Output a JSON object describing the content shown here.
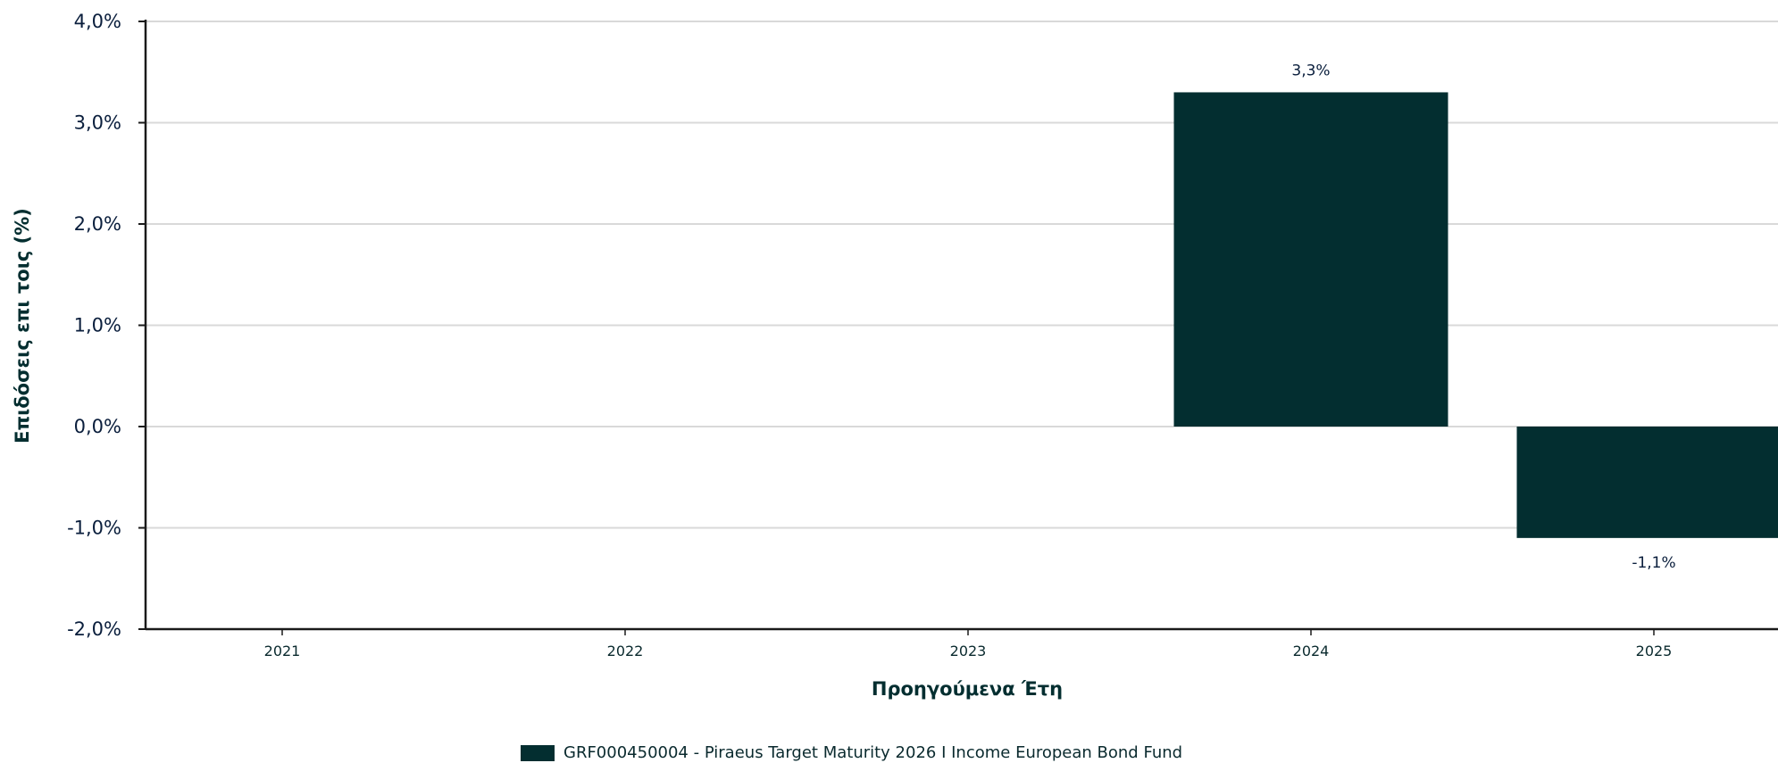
{
  "chart_data": {
    "type": "bar",
    "categories": [
      "2021",
      "2022",
      "2023",
      "2024",
      "2025"
    ],
    "series": [
      {
        "name": "GRF000450004 - Piraeus Target Maturity 2026 I Income European Bond Fund",
        "values": [
          null,
          null,
          null,
          3.3,
          -1.1
        ],
        "data_labels": [
          "",
          "",
          "",
          "3,3%",
          "-1,1%"
        ]
      }
    ],
    "xlabel": "Προηγούμενα Έτη",
    "ylabel": "Επιδόσεις επι τοις (%)",
    "ylim": [
      -2.0,
      4.0
    ],
    "yticks": [
      4.0,
      3.0,
      2.0,
      1.0,
      0.0,
      -1.0,
      -2.0
    ],
    "ytick_labels": [
      "4,0%",
      "3,0%",
      "2,0%",
      "1,0%",
      "0,0%",
      "-1,0%",
      "-2,0%"
    ],
    "grid": true,
    "legend_position": "bottom",
    "colors": {
      "bar": "#032e30",
      "grid": "#d9d9d9",
      "axis": "#1a1a1a"
    }
  }
}
